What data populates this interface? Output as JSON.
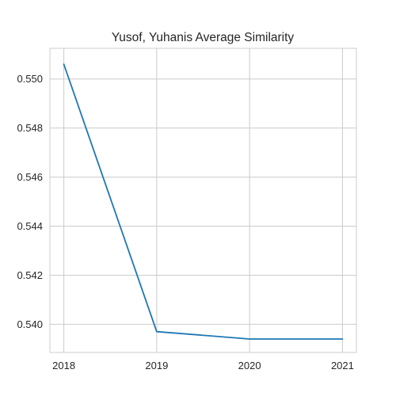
{
  "chart_data": {
    "type": "line",
    "title": "Yusof, Yuhanis Average Similarity",
    "xlabel": "",
    "ylabel": "",
    "x": [
      2018,
      2019,
      2020,
      2021
    ],
    "series": [
      {
        "name": "Average Similarity",
        "values": [
          0.5506,
          0.5397,
          0.5394,
          0.5394
        ],
        "color": "#1f77b4"
      }
    ],
    "xlim": [
      2017.85,
      2021.15
    ],
    "ylim": [
      0.53885,
      0.55125
    ],
    "xticks": [
      2018,
      2019,
      2020,
      2021
    ],
    "xtick_labels": [
      "2018",
      "2019",
      "2020",
      "2021"
    ],
    "yticks": [
      0.54,
      0.542,
      0.544,
      0.546,
      0.548,
      0.55
    ],
    "ytick_labels": [
      "0.540",
      "0.542",
      "0.544",
      "0.546",
      "0.548",
      "0.550"
    ],
    "grid": true,
    "legend": "none"
  }
}
